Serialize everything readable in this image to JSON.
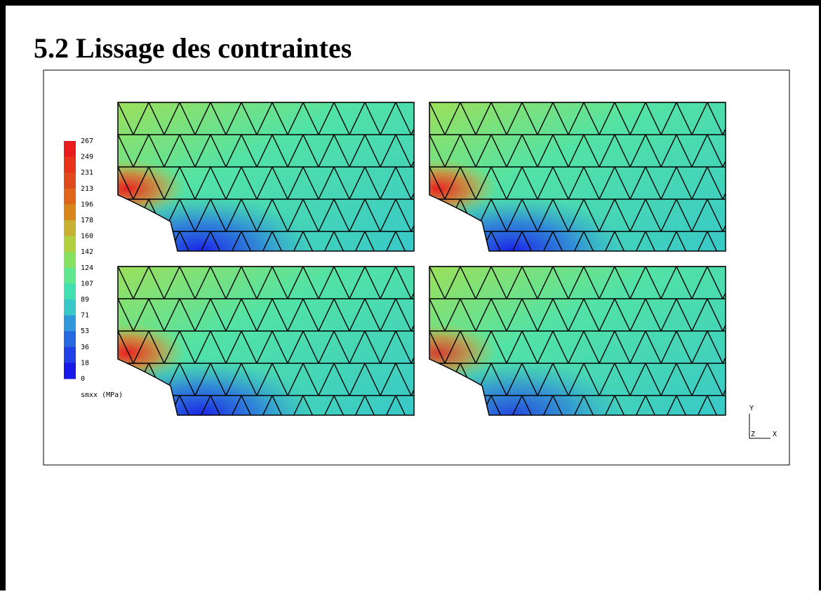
{
  "header": {
    "title": "5.2 Lissage des contraintes"
  },
  "legend": {
    "labels": [
      267,
      249,
      231,
      213,
      196,
      178,
      160,
      142,
      124,
      107,
      89,
      71,
      53,
      36,
      18,
      0
    ],
    "caption": "smxx (MPa)"
  },
  "triad": {
    "y": "Y",
    "z": "Z",
    "x": "X"
  }
}
